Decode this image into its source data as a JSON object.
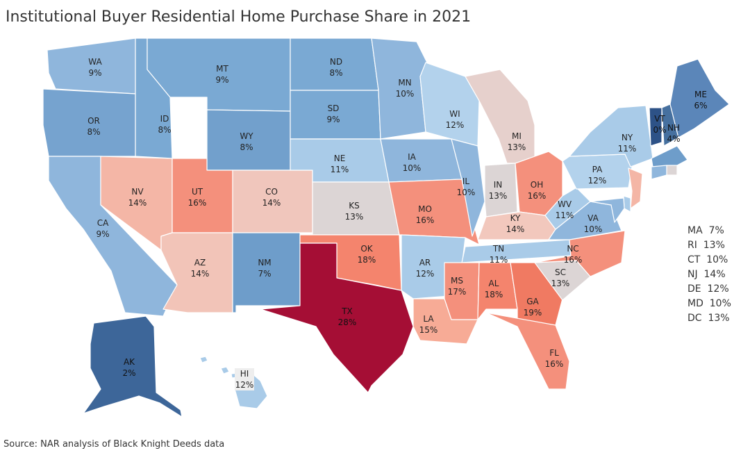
{
  "title": "Institutional Buyer Residential Home Purchase Share in 2021",
  "source": "Source: NAR analysis of Black Knight Deeds data",
  "states": [
    {
      "code": "WA",
      "value": "9%",
      "color": "#8fb6dc"
    },
    {
      "code": "OR",
      "value": "8%",
      "color": "#76a3cf"
    },
    {
      "code": "CA",
      "value": "9%",
      "color": "#8fb6dc"
    },
    {
      "code": "NV",
      "value": "14%",
      "color": "#f4b6a6"
    },
    {
      "code": "ID",
      "value": "8%",
      "color": "#7aa9d3"
    },
    {
      "code": "MT",
      "value": "9%",
      "color": "#7aa9d3"
    },
    {
      "code": "WY",
      "value": "8%",
      "color": "#72a0cc"
    },
    {
      "code": "UT",
      "value": "16%",
      "color": "#f4907c"
    },
    {
      "code": "CO",
      "value": "14%",
      "color": "#f0c6bc"
    },
    {
      "code": "AZ",
      "value": "14%",
      "color": "#f2c4b8"
    },
    {
      "code": "NM",
      "value": "7%",
      "color": "#6e9dca"
    },
    {
      "code": "ND",
      "value": "8%",
      "color": "#7aa9d3"
    },
    {
      "code": "SD",
      "value": "9%",
      "color": "#7aa9d3"
    },
    {
      "code": "NE",
      "value": "11%",
      "color": "#a9cbe8"
    },
    {
      "code": "KS",
      "value": "13%",
      "color": "#dcd5d5"
    },
    {
      "code": "OK",
      "value": "18%",
      "color": "#f4846d"
    },
    {
      "code": "TX",
      "value": "28%",
      "color": "#a50e35"
    },
    {
      "code": "MN",
      "value": "10%",
      "color": "#8fb6dc"
    },
    {
      "code": "IA",
      "value": "10%",
      "color": "#8fb6dc"
    },
    {
      "code": "MO",
      "value": "16%",
      "color": "#f4907c"
    },
    {
      "code": "AR",
      "value": "12%",
      "color": "#a9cbe8"
    },
    {
      "code": "LA",
      "value": "15%",
      "color": "#f7ab96"
    },
    {
      "code": "WI",
      "value": "12%",
      "color": "#b3d2ec"
    },
    {
      "code": "IL",
      "value": "10%",
      "color": "#8fb6dc"
    },
    {
      "code": "MI",
      "value": "13%",
      "color": "#e6d0cc"
    },
    {
      "code": "IN",
      "value": "13%",
      "color": "#dcd5d5"
    },
    {
      "code": "OH",
      "value": "16%",
      "color": "#f4907c"
    },
    {
      "code": "KY",
      "value": "14%",
      "color": "#f2c8bd"
    },
    {
      "code": "TN",
      "value": "11%",
      "color": "#a9cbe8"
    },
    {
      "code": "MS",
      "value": "17%",
      "color": "#f4907c"
    },
    {
      "code": "AL",
      "value": "18%",
      "color": "#f4846d"
    },
    {
      "code": "GA",
      "value": "19%",
      "color": "#f07a62"
    },
    {
      "code": "FL",
      "value": "16%",
      "color": "#f4907c"
    },
    {
      "code": "SC",
      "value": "13%",
      "color": "#dcd5d5"
    },
    {
      "code": "NC",
      "value": "16%",
      "color": "#f4907c"
    },
    {
      "code": "VA",
      "value": "10%",
      "color": "#8fb6dc"
    },
    {
      "code": "WV",
      "value": "11%",
      "color": "#a9cbe8"
    },
    {
      "code": "PA",
      "value": "12%",
      "color": "#b3d2ec"
    },
    {
      "code": "NY",
      "value": "11%",
      "color": "#a9cbe8"
    },
    {
      "code": "VT",
      "value": "0%",
      "color": "#2d5287"
    },
    {
      "code": "NH",
      "value": "4%",
      "color": "#46709f"
    },
    {
      "code": "ME",
      "value": "6%",
      "color": "#5b86b9"
    },
    {
      "code": "AK",
      "value": "2%",
      "color": "#3d6699"
    },
    {
      "code": "HI",
      "value": "12%",
      "color": "#a9cbe8"
    }
  ],
  "small_states": [
    {
      "code": "MA",
      "value": "7%",
      "color": "#6e9dca"
    },
    {
      "code": "RI",
      "value": "13%",
      "color": "#dcd5d5"
    },
    {
      "code": "CT",
      "value": "10%",
      "color": "#8fb6dc"
    },
    {
      "code": "NJ",
      "value": "14%",
      "color": "#f4b6a6"
    },
    {
      "code": "DE",
      "value": "12%",
      "color": "#a9cbe8"
    },
    {
      "code": "MD",
      "value": "10%",
      "color": "#8fb6dc"
    },
    {
      "code": "DC",
      "value": "13%",
      "color": "#dcd5d5"
    }
  ]
}
